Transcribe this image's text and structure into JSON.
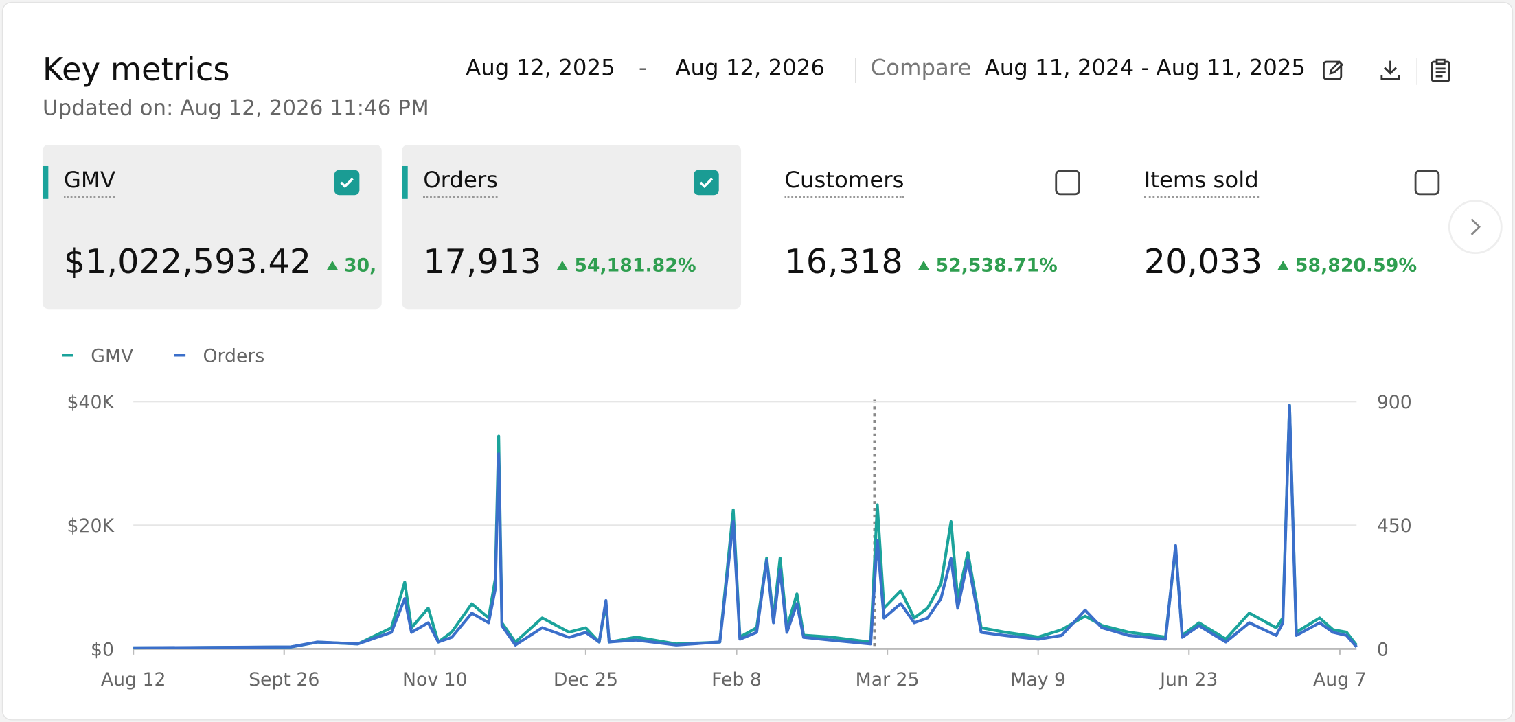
{
  "header": {
    "title": "Key metrics",
    "updated": "Updated on: Aug 12, 2026 11:46 PM",
    "date_start": "Aug 12, 2025",
    "date_separator": "-",
    "date_end": "Aug 12, 2026",
    "compare_label": "Compare",
    "compare_range": "Aug 11, 2024 - Aug 11, 2025"
  },
  "metrics": [
    {
      "name": "GMV",
      "value": "$1,022,593.42",
      "change": "30,",
      "checked": true
    },
    {
      "name": "Orders",
      "value": "17,913",
      "change": "54,181.82%",
      "checked": true
    },
    {
      "name": "Customers",
      "value": "16,318",
      "change": "52,538.71%",
      "checked": false
    },
    {
      "name": "Items sold",
      "value": "20,033",
      "change": "58,820.59%",
      "checked": false
    }
  ],
  "chart_data": {
    "type": "line",
    "x": [
      0,
      47,
      55,
      67,
      77,
      81,
      83,
      88,
      91,
      95,
      101,
      106,
      108,
      109,
      110,
      114,
      122,
      130,
      135,
      139,
      141,
      142,
      150,
      162,
      175,
      179,
      181,
      186,
      189,
      191,
      193,
      195,
      198,
      200,
      208,
      220,
      222,
      224,
      229,
      233,
      237,
      241,
      244,
      246,
      249,
      253,
      260,
      270,
      277,
      284,
      289,
      297,
      308,
      311,
      313,
      318,
      326,
      333,
      341,
      343,
      345,
      347,
      354,
      358,
      362,
      365
    ],
    "xlim": [
      0,
      365
    ],
    "xticks": [
      {
        "value": 0,
        "label": "Aug 12"
      },
      {
        "value": 45,
        "label": "Sept 26"
      },
      {
        "value": 90,
        "label": "Nov 10"
      },
      {
        "value": 135,
        "label": "Dec 25"
      },
      {
        "value": 180,
        "label": "Feb 8"
      },
      {
        "value": 225,
        "label": "Mar 25"
      },
      {
        "value": 270,
        "label": "May 9"
      },
      {
        "value": 315,
        "label": "Jun 23"
      },
      {
        "value": 360,
        "label": "Aug 7"
      }
    ],
    "ylim": [
      0,
      40000
    ],
    "yticks": [
      {
        "value": 0,
        "label": "$0"
      },
      {
        "value": 20000,
        "label": "$20K"
      },
      {
        "value": 40000,
        "label": "$40K"
      }
    ],
    "y2lim": [
      0,
      900
    ],
    "y2ticks": [
      0,
      450,
      900
    ],
    "grid": true,
    "series": [
      {
        "name": "GMV",
        "color": "#1ba39b",
        "values": [
          150,
          300,
          1100,
          800,
          3400,
          10800,
          3400,
          6600,
          1100,
          2700,
          7300,
          5000,
          11300,
          34400,
          4200,
          1100,
          5000,
          2700,
          3400,
          1100,
          7300,
          1100,
          1900,
          800,
          1100,
          22500,
          1900,
          3400,
          14700,
          5000,
          14700,
          3400,
          8900,
          2200,
          1900,
          1100,
          23300,
          6600,
          9400,
          5000,
          6600,
          10500,
          20600,
          8100,
          15600,
          3400,
          2700,
          1900,
          3100,
          5300,
          3800,
          2700,
          1900,
          16300,
          2200,
          4200,
          1600,
          5800,
          3400,
          5000,
          39400,
          2700,
          5000,
          3100,
          2700,
          600
        ]
      },
      {
        "name": "Orders",
        "color": "#3b6fca",
        "axis": "y2",
        "values": [
          4,
          7,
          25,
          18,
          60,
          183,
          60,
          95,
          25,
          42,
          130,
          95,
          218,
          710,
          84,
          14,
          77,
          42,
          60,
          25,
          176,
          25,
          32,
          14,
          25,
          464,
          35,
          60,
          323,
          95,
          288,
          60,
          165,
          42,
          32,
          18,
          394,
          112,
          165,
          95,
          112,
          183,
          330,
          148,
          323,
          60,
          49,
          35,
          49,
          141,
          77,
          49,
          35,
          376,
          42,
          84,
          25,
          95,
          49,
          95,
          886,
          49,
          95,
          60,
          49,
          7
        ]
      }
    ]
  }
}
